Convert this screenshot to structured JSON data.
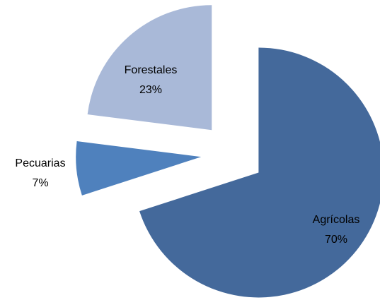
{
  "chart_data": {
    "type": "pie",
    "categories": [
      "Agrícolas",
      "Pecuarias",
      "Forestales"
    ],
    "values": [
      70,
      7,
      23
    ],
    "value_labels": [
      "70%",
      "7%",
      "23%"
    ],
    "colors": [
      "#44699b",
      "#4f81bd",
      "#a9b9d8"
    ]
  }
}
